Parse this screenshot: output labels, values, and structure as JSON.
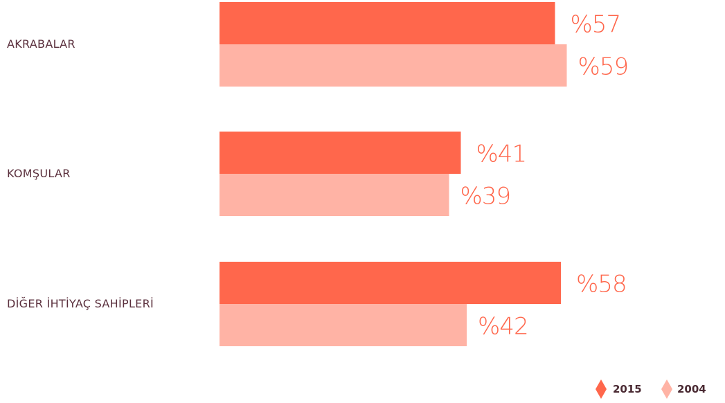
{
  "chart_data": {
    "type": "bar",
    "orientation": "horizontal",
    "title": "",
    "xlabel": "",
    "ylabel": "",
    "categories": [
      "AKRABALAR",
      "KOMŞULAR",
      "DİĞER İHTİYAÇ SAHİPLERİ"
    ],
    "series": [
      {
        "name": "2015",
        "values": [
          57,
          41,
          58
        ],
        "labels": [
          "%57",
          "%41",
          "%58"
        ],
        "color": "#ff674c"
      },
      {
        "name": "2004",
        "values": [
          59,
          39,
          42
        ],
        "labels": [
          "%59",
          "%39",
          "%42"
        ],
        "color": "#ffb3a5"
      }
    ],
    "xlim": [
      0,
      100
    ],
    "grid": false,
    "legend_position": "bottom-right",
    "value_unit": "%"
  }
}
